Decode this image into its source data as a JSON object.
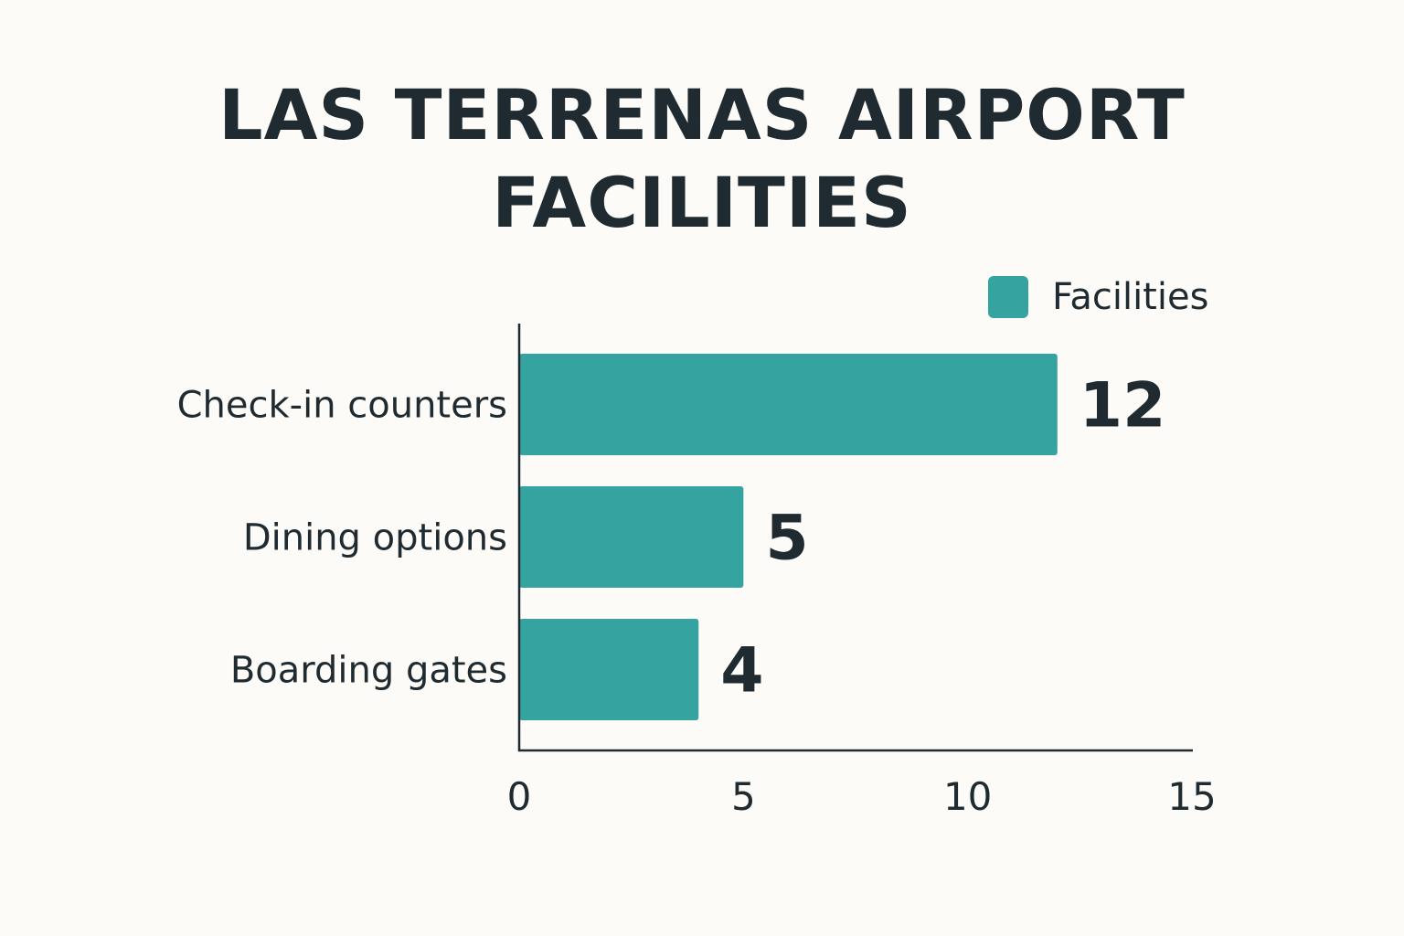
{
  "chart_data": {
    "type": "bar",
    "orientation": "horizontal",
    "title_lines": [
      "LAS TERRENAS AIRPORT",
      "FACILITIES"
    ],
    "categories": [
      "Check-in counters",
      "Dining options",
      "Boarding gates"
    ],
    "series": [
      {
        "name": "Facilities",
        "values": [
          12,
          5,
          4
        ],
        "color": "#35a3a0"
      }
    ],
    "data_labels": [
      "12",
      "5",
      "4"
    ],
    "xlim": [
      0,
      15
    ],
    "xticks": [
      "0",
      "5",
      "10",
      "15"
    ],
    "grid": false,
    "legend_position": "top-right",
    "text_color": "#1f2b30",
    "background": "#fcfbf7"
  }
}
